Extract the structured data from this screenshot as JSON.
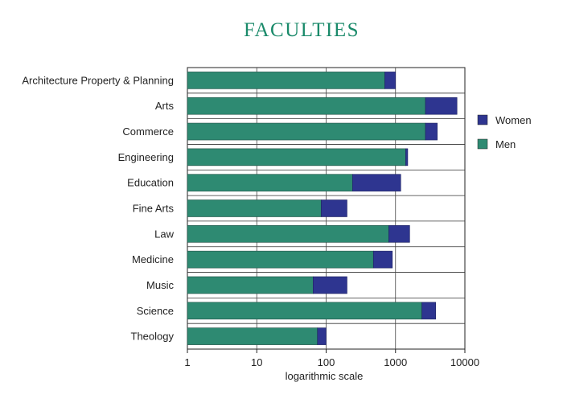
{
  "chart_data": {
    "type": "bar",
    "orientation": "horizontal",
    "stacked": true,
    "title": "FACULTIES",
    "xlabel": "logarithmic scale",
    "ylabel": "",
    "x_scale": "log",
    "xlim": [
      1,
      10000
    ],
    "xticks": [
      1,
      10,
      100,
      1000,
      10000
    ],
    "xtick_labels": [
      "1",
      "10",
      "100",
      "1000",
      "10000"
    ],
    "grid": true,
    "legend_position": "right",
    "categories": [
      "Architecture Property & Planning",
      "Arts",
      "Commerce",
      "Engineering",
      "Education",
      "Fine Arts",
      "Law",
      "Medicine",
      "Music",
      "Science",
      "Theology"
    ],
    "series": [
      {
        "name": "Men",
        "color": "#2e8a72",
        "values": [
          700,
          2700,
          2700,
          1400,
          240,
          85,
          800,
          480,
          65,
          2400,
          75
        ]
      },
      {
        "name": "Women",
        "color": "#2e3590",
        "values": [
          300,
          5000,
          1300,
          100,
          950,
          115,
          800,
          420,
          135,
          1400,
          25
        ]
      }
    ],
    "legend_order": [
      "Women",
      "Men"
    ]
  }
}
